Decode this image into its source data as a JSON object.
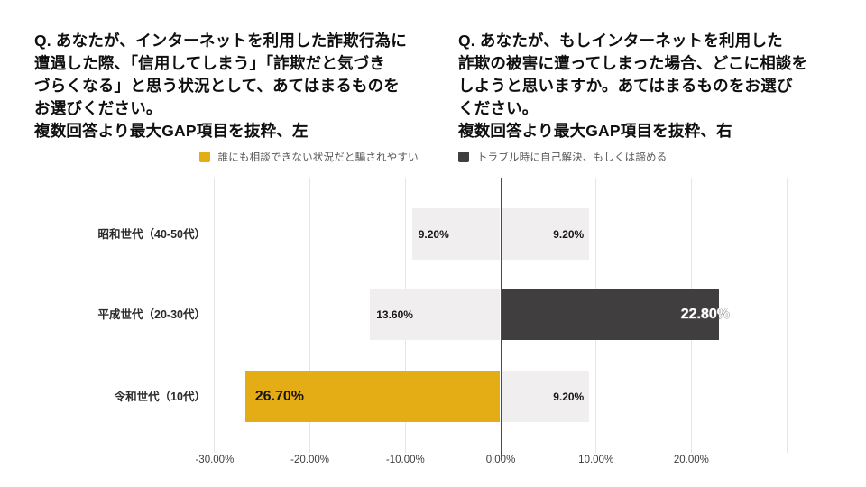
{
  "questions": {
    "left": "Q. あなたが、インターネットを利用した詐欺行為に\n遭遇した際、「信用してしまう」「詐欺だと気づき\nづらくなる」と思う状況として、あてはまるものを\nお選びください。\n複数回答より最大GAP項目を抜粋、左",
    "right": "Q. あなたが、もしインターネットを利用した\n詐欺の被害に遭ってしまった場合、どこに相談を\nしようと思いますか。あてはまるものをお選び\nください。\n複数回答より最大GAP項目を抜粋、右"
  },
  "legend": {
    "items": [
      {
        "label": "誰にも相談できない状況だと騙されやすい",
        "color": "#E4AC15"
      },
      {
        "label": "トラブル時に自己解決、もしくは諦める",
        "color": "#413E40"
      }
    ]
  },
  "chart_data": {
    "type": "bar",
    "orientation": "horizontal-diverging",
    "title": "",
    "xlabel": "",
    "ylabel": "",
    "categories": [
      "昭和世代（40-50代）",
      "平成世代（20-30代）",
      "令和世代（10代）"
    ],
    "series": [
      {
        "name": "誰にも相談できない状況だと騙されやすい",
        "side": "left",
        "color": "#E4AC15",
        "values": [
          9.2,
          13.6,
          26.7
        ],
        "labels": [
          "9.20%",
          "13.60%",
          "26.70%"
        ],
        "emphasized": [
          false,
          false,
          true
        ]
      },
      {
        "name": "トラブル時に自己解決、もしくは諦める",
        "side": "right",
        "color": "#413E40",
        "values": [
          9.2,
          22.8,
          9.2
        ],
        "labels": [
          "9.20%",
          "22.80%",
          "9.20%"
        ],
        "emphasized": [
          false,
          true,
          false
        ]
      }
    ],
    "x_grid_values": [
      -30,
      -20,
      -10,
      0,
      10,
      20,
      30
    ],
    "x_tick_labels": [
      "-30.00%",
      "-20.00%",
      "-10.00%",
      "0.00%",
      "10.00%",
      "20.00%"
    ],
    "xlim": [
      -30,
      30
    ],
    "grid": true,
    "legend_position": "top",
    "colors": {
      "muted_bar": "#F1EEF0",
      "gridline": "#E7E5E8",
      "zero_line": "#4A4A4A"
    }
  }
}
